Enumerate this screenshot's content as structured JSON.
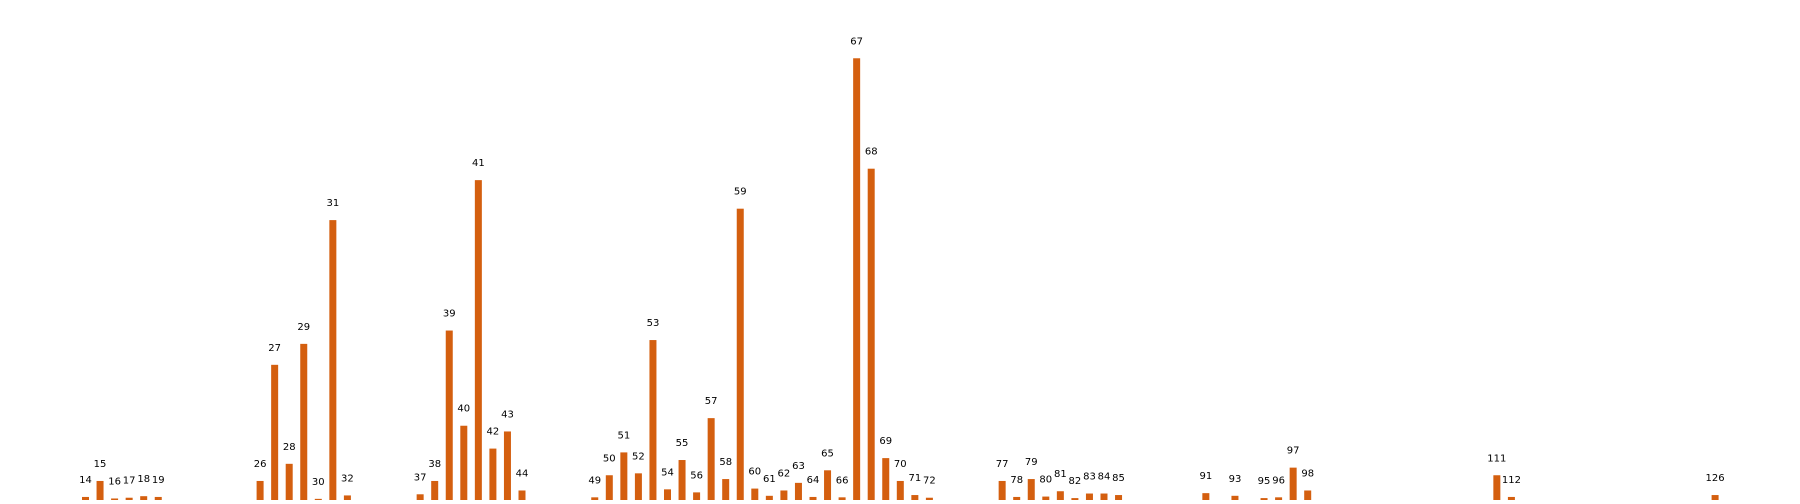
{
  "chart_data": {
    "type": "bar",
    "title": "",
    "xlabel": "",
    "ylabel": "",
    "bar_color": "#d45f0f",
    "label_color": "#000000",
    "background_color": "#ffffff",
    "grid": false,
    "axes_visible": false,
    "legend": "none",
    "ylim": [
      0,
      12.5
    ],
    "categories": [
      "14",
      "15",
      "16",
      "17",
      "18",
      "19",
      "26",
      "27",
      "28",
      "29",
      "30",
      "31",
      "32",
      "37",
      "38",
      "39",
      "40",
      "41",
      "42",
      "43",
      "44",
      "49",
      "50",
      "51",
      "52",
      "53",
      "54",
      "55",
      "56",
      "57",
      "58",
      "59",
      "60",
      "61",
      "62",
      "63",
      "64",
      "65",
      "66",
      "67",
      "68",
      "69",
      "70",
      "71",
      "72",
      "77",
      "78",
      "79",
      "80",
      "81",
      "82",
      "83",
      "84",
      "85",
      "91",
      "93",
      "95",
      "96",
      "97",
      "98",
      "111",
      "112",
      "126"
    ],
    "x": [
      14,
      15,
      16,
      17,
      18,
      19,
      26,
      27,
      28,
      29,
      30,
      31,
      32,
      37,
      38,
      39,
      40,
      41,
      42,
      43,
      44,
      49,
      50,
      51,
      52,
      53,
      54,
      55,
      56,
      57,
      58,
      59,
      60,
      61,
      62,
      63,
      64,
      65,
      66,
      67,
      68,
      69,
      70,
      71,
      72,
      77,
      78,
      79,
      80,
      81,
      82,
      83,
      84,
      85,
      91,
      93,
      95,
      96,
      97,
      98,
      111,
      112,
      126
    ],
    "values": [
      0.08,
      0.5,
      0.04,
      0.06,
      0.1,
      0.08,
      0.5,
      3.55,
      0.95,
      4.1,
      0.03,
      7.35,
      0.12,
      0.15,
      0.5,
      4.45,
      1.95,
      8.4,
      1.35,
      1.8,
      0.25,
      0.07,
      0.65,
      1.25,
      0.7,
      4.2,
      0.28,
      1.05,
      0.2,
      2.15,
      0.55,
      7.65,
      0.3,
      0.11,
      0.25,
      0.45,
      0.08,
      0.78,
      0.07,
      11.6,
      8.7,
      1.1,
      0.5,
      0.13,
      0.06,
      0.5,
      0.08,
      0.55,
      0.09,
      0.23,
      0.05,
      0.17,
      0.17,
      0.13,
      0.18,
      0.11,
      0.05,
      0.07,
      0.85,
      0.25,
      0.65,
      0.08,
      0.13
    ]
  }
}
